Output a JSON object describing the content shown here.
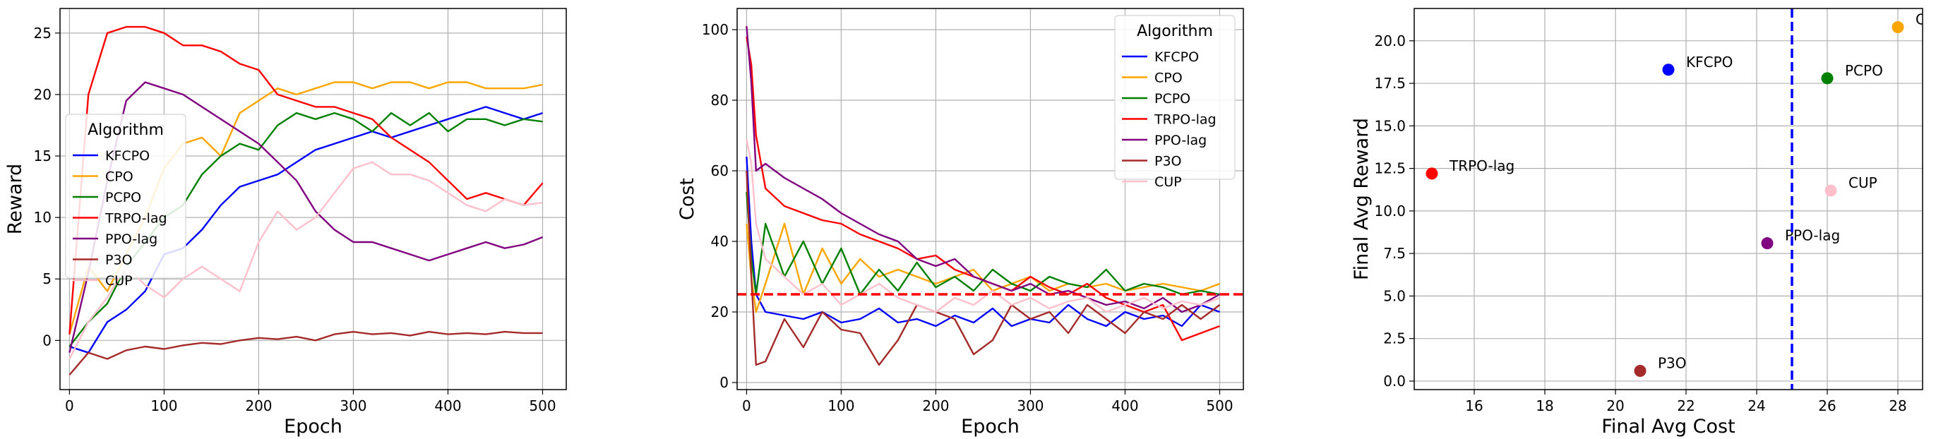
{
  "colors": {
    "KFCPO": "#0000ff",
    "CPO": "#ffa500",
    "PCPO": "#008000",
    "TRPO-lag": "#ff0000",
    "PPO-lag": "#800080",
    "P3O": "#a52a2a",
    "CUP": "#ffc0cb",
    "reference_line_cost": "#ff0000",
    "reference_line_scatter": "#0000ff"
  },
  "chart_data": [
    {
      "type": "line",
      "xlabel": "Epoch",
      "ylabel": "Reward",
      "xlim": [
        -10,
        525
      ],
      "ylim": [
        -4,
        27
      ],
      "xticks": [
        0,
        100,
        200,
        300,
        400,
        500
      ],
      "yticks": [
        0,
        5,
        10,
        15,
        20,
        25
      ],
      "grid": true,
      "legend": {
        "title": "Algorithm",
        "placement": "center-left"
      },
      "series": [
        {
          "name": "KFCPO",
          "x": [
            0,
            20,
            40,
            60,
            80,
            100,
            120,
            140,
            160,
            180,
            200,
            220,
            240,
            260,
            280,
            300,
            320,
            340,
            360,
            380,
            400,
            420,
            440,
            460,
            480,
            500
          ],
          "values": [
            -0.5,
            -1.0,
            1.5,
            2.5,
            4.0,
            7.0,
            7.5,
            9.0,
            11.0,
            12.5,
            13.0,
            13.5,
            14.5,
            15.5,
            16.0,
            16.5,
            17.0,
            16.5,
            17.0,
            17.5,
            18.0,
            18.5,
            19.0,
            18.5,
            18.0,
            18.5
          ]
        },
        {
          "name": "CPO",
          "x": [
            0,
            20,
            40,
            60,
            80,
            100,
            120,
            140,
            160,
            180,
            200,
            220,
            240,
            260,
            280,
            300,
            320,
            340,
            360,
            380,
            400,
            420,
            440,
            460,
            480,
            500
          ],
          "values": [
            0.5,
            6.0,
            4.0,
            7.0,
            10.0,
            14.0,
            16.0,
            16.5,
            15.0,
            18.5,
            19.5,
            20.5,
            20.0,
            20.5,
            21.0,
            21.0,
            20.5,
            21.0,
            21.0,
            20.5,
            21.0,
            21.0,
            20.5,
            20.5,
            20.5,
            20.8
          ]
        },
        {
          "name": "PCPO",
          "x": [
            0,
            20,
            40,
            60,
            80,
            100,
            120,
            140,
            160,
            180,
            200,
            220,
            240,
            260,
            280,
            300,
            320,
            340,
            360,
            380,
            400,
            420,
            440,
            460,
            480,
            500
          ],
          "values": [
            -0.5,
            1.5,
            3.0,
            6.0,
            8.0,
            10.0,
            11.0,
            13.5,
            15.0,
            16.0,
            15.5,
            17.5,
            18.5,
            18.0,
            18.5,
            18.0,
            17.0,
            18.5,
            17.5,
            18.5,
            17.0,
            18.0,
            18.0,
            17.5,
            18.0,
            17.8
          ]
        },
        {
          "name": "TRPO-lag",
          "x": [
            0,
            20,
            40,
            60,
            80,
            100,
            120,
            140,
            160,
            180,
            200,
            220,
            240,
            260,
            280,
            300,
            320,
            340,
            360,
            380,
            400,
            420,
            440,
            460,
            480,
            500
          ],
          "values": [
            0.5,
            20.0,
            25.0,
            25.5,
            25.5,
            25.0,
            24.0,
            24.0,
            23.5,
            22.5,
            22.0,
            20.0,
            19.5,
            19.0,
            19.0,
            18.5,
            18.0,
            16.5,
            15.5,
            14.5,
            13.0,
            11.5,
            12.0,
            11.5,
            11.0,
            12.8
          ]
        },
        {
          "name": "PPO-lag",
          "x": [
            0,
            20,
            40,
            60,
            80,
            100,
            120,
            140,
            160,
            180,
            200,
            220,
            240,
            260,
            280,
            300,
            320,
            340,
            360,
            380,
            400,
            420,
            440,
            460,
            480,
            500
          ],
          "values": [
            -1.0,
            5.5,
            13.0,
            19.5,
            21.0,
            20.5,
            20.0,
            19.0,
            18.0,
            17.0,
            16.0,
            14.5,
            13.0,
            10.5,
            9.0,
            8.0,
            8.0,
            7.5,
            7.0,
            6.5,
            7.0,
            7.5,
            8.0,
            7.5,
            7.8,
            8.4
          ]
        },
        {
          "name": "P3O",
          "x": [
            0,
            20,
            40,
            60,
            80,
            100,
            120,
            140,
            160,
            180,
            200,
            220,
            240,
            260,
            280,
            300,
            320,
            340,
            360,
            380,
            400,
            420,
            440,
            460,
            480,
            500
          ],
          "values": [
            -2.8,
            -1.0,
            -1.5,
            -0.8,
            -0.5,
            -0.7,
            -0.4,
            -0.2,
            -0.3,
            0.0,
            0.2,
            0.1,
            0.3,
            0.0,
            0.5,
            0.7,
            0.5,
            0.6,
            0.4,
            0.7,
            0.5,
            0.6,
            0.5,
            0.7,
            0.6,
            0.6
          ]
        },
        {
          "name": "CUP",
          "x": [
            0,
            20,
            40,
            60,
            80,
            100,
            120,
            140,
            160,
            180,
            200,
            220,
            240,
            260,
            280,
            300,
            320,
            340,
            360,
            380,
            400,
            420,
            440,
            460,
            480,
            500
          ],
          "values": [
            -1.5,
            1.5,
            3.5,
            6.0,
            4.5,
            3.5,
            5.0,
            6.0,
            5.0,
            4.0,
            8.0,
            10.5,
            9.0,
            10.0,
            12.0,
            14.0,
            14.5,
            13.5,
            13.5,
            13.0,
            12.0,
            11.0,
            10.5,
            11.5,
            11.0,
            11.2
          ]
        }
      ]
    },
    {
      "type": "line",
      "xlabel": "Epoch",
      "ylabel": "Cost",
      "xlim": [
        -10,
        525
      ],
      "ylim": [
        -2,
        106
      ],
      "xticks": [
        0,
        100,
        200,
        300,
        400,
        500
      ],
      "yticks": [
        0,
        20,
        40,
        60,
        80,
        100
      ],
      "grid": true,
      "reference_line": {
        "y": 25,
        "style": "dashed"
      },
      "legend": {
        "title": "Algorithm",
        "placement": "top-right"
      },
      "series": [
        {
          "name": "KFCPO",
          "x": [
            0,
            5,
            10,
            20,
            40,
            60,
            80,
            100,
            120,
            140,
            160,
            180,
            200,
            220,
            240,
            260,
            280,
            300,
            320,
            340,
            360,
            380,
            400,
            420,
            440,
            460,
            480,
            500
          ],
          "values": [
            64,
            40,
            25,
            20,
            19,
            18,
            20,
            17,
            18,
            21,
            17,
            18,
            16,
            19,
            17,
            21,
            16,
            18,
            17,
            22,
            18,
            16,
            20,
            18,
            19,
            16,
            22,
            20
          ]
        },
        {
          "name": "CPO",
          "x": [
            0,
            5,
            10,
            20,
            40,
            60,
            80,
            100,
            120,
            140,
            160,
            180,
            200,
            220,
            240,
            260,
            280,
            300,
            320,
            340,
            360,
            380,
            400,
            420,
            440,
            460,
            480,
            500
          ],
          "values": [
            45,
            30,
            20,
            28,
            45,
            25,
            38,
            28,
            35,
            30,
            32,
            30,
            28,
            30,
            32,
            26,
            28,
            30,
            26,
            28,
            27,
            28,
            26,
            27,
            28,
            27,
            26,
            28
          ]
        },
        {
          "name": "PCPO",
          "x": [
            0,
            5,
            10,
            20,
            40,
            60,
            80,
            100,
            120,
            140,
            160,
            180,
            200,
            220,
            240,
            260,
            280,
            300,
            320,
            340,
            360,
            380,
            400,
            420,
            440,
            460,
            480,
            500
          ],
          "values": [
            54,
            35,
            25,
            45,
            30,
            40,
            28,
            38,
            25,
            32,
            26,
            34,
            27,
            30,
            26,
            32,
            28,
            26,
            30,
            28,
            27,
            32,
            26,
            28,
            27,
            25,
            26,
            25
          ]
        },
        {
          "name": "TRPO-lag",
          "x": [
            0,
            5,
            10,
            20,
            40,
            60,
            80,
            100,
            120,
            140,
            160,
            180,
            200,
            220,
            240,
            260,
            280,
            300,
            320,
            340,
            360,
            380,
            400,
            420,
            440,
            460,
            480,
            500
          ],
          "values": [
            98,
            90,
            70,
            55,
            50,
            48,
            46,
            45,
            42,
            40,
            38,
            35,
            36,
            32,
            30,
            28,
            26,
            30,
            27,
            25,
            28,
            24,
            22,
            20,
            22,
            12,
            14,
            16
          ]
        },
        {
          "name": "PPO-lag",
          "x": [
            0,
            5,
            10,
            20,
            40,
            60,
            80,
            100,
            120,
            140,
            160,
            180,
            200,
            220,
            240,
            260,
            280,
            300,
            320,
            340,
            360,
            380,
            400,
            420,
            440,
            460,
            480,
            500
          ],
          "values": [
            101,
            85,
            60,
            62,
            58,
            55,
            52,
            48,
            45,
            42,
            40,
            35,
            33,
            35,
            30,
            28,
            26,
            28,
            25,
            26,
            24,
            22,
            23,
            21,
            24,
            20,
            22,
            25
          ]
        },
        {
          "name": "P3O",
          "x": [
            0,
            5,
            10,
            20,
            40,
            60,
            80,
            100,
            120,
            140,
            160,
            180,
            200,
            220,
            240,
            260,
            280,
            300,
            320,
            340,
            360,
            380,
            400,
            420,
            440,
            460,
            480,
            500
          ],
          "values": [
            60,
            30,
            5,
            6,
            18,
            10,
            20,
            15,
            14,
            5,
            12,
            22,
            20,
            18,
            8,
            12,
            22,
            18,
            20,
            14,
            22,
            18,
            14,
            20,
            18,
            22,
            18,
            22
          ]
        },
        {
          "name": "CUP",
          "x": [
            0,
            5,
            10,
            20,
            40,
            60,
            80,
            100,
            120,
            140,
            160,
            180,
            200,
            220,
            240,
            260,
            280,
            300,
            320,
            340,
            360,
            380,
            400,
            420,
            440,
            460,
            480,
            500
          ],
          "values": [
            69,
            62,
            45,
            35,
            30,
            25,
            28,
            22,
            25,
            28,
            24,
            22,
            20,
            24,
            22,
            26,
            22,
            24,
            21,
            23,
            24,
            20,
            22,
            24,
            21,
            23,
            22,
            24
          ]
        }
      ]
    },
    {
      "type": "scatter",
      "xlabel": "Final Avg Cost",
      "ylabel": "Final Avg Reward",
      "xlim": [
        14.3,
        28.7
      ],
      "ylim": [
        -0.5,
        21.9
      ],
      "xticks": [
        16,
        18,
        20,
        22,
        24,
        26,
        28
      ],
      "yticks": [
        0.0,
        2.5,
        5.0,
        7.5,
        10.0,
        12.5,
        15.0,
        17.5,
        20.0
      ],
      "ytick_labels": [
        "0.0",
        "2.5",
        "5.0",
        "7.5",
        "10.0",
        "12.5",
        "15.0",
        "17.5",
        "20.0"
      ],
      "grid": true,
      "reference_line": {
        "x": 25,
        "style": "dashed"
      },
      "points": [
        {
          "name": "KFCPO",
          "x": 21.5,
          "y": 18.3
        },
        {
          "name": "CPO",
          "x": 28.0,
          "y": 20.8,
          "display_label": "CPO"
        },
        {
          "name": "PCPO",
          "x": 26.0,
          "y": 17.8
        },
        {
          "name": "TRPO-lag",
          "x": 14.8,
          "y": 12.2
        },
        {
          "name": "PPO-lag",
          "x": 24.3,
          "y": 8.1
        },
        {
          "name": "P3O",
          "x": 20.7,
          "y": 0.6
        },
        {
          "name": "CUP",
          "x": 26.1,
          "y": 11.2
        }
      ]
    }
  ]
}
